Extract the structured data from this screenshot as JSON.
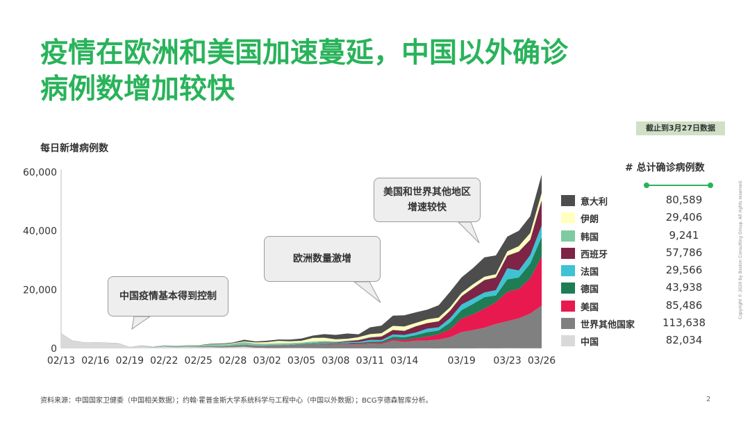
{
  "title_lines": [
    "疫情在欧洲和美国加速蔓延，中国以外确诊",
    "病例数增加较快"
  ],
  "as_of": "截止到3月27日数据",
  "totals_header": "# 总计确诊病例数",
  "callouts": [
    "中国疫情基本得到控制",
    "欧洲数量激增",
    "美国和世界其他地区增速较快"
  ],
  "footer": {
    "source": "资料来源：中国国家卫健委（中国相关数据）；约翰·霍普金斯大学系统科学与工程中心（中国以外数据）；BCG亨德森智库分析。",
    "page": "2",
    "copyright": "Copyright © 2020 by Boston Consulting Group. All rights reserved."
  },
  "chart_data": {
    "type": "area",
    "stacked": true,
    "ylabel": "每日新增病例数",
    "ylim": [
      0,
      60000
    ],
    "yticks": [
      "0",
      "20,000",
      "40,000",
      "60,000"
    ],
    "x_tick_labels": [
      {
        "i": 0,
        "label": "02/13"
      },
      {
        "i": 3,
        "label": "02/16"
      },
      {
        "i": 6,
        "label": "02/19"
      },
      {
        "i": 9,
        "label": "02/22"
      },
      {
        "i": 12,
        "label": "02/25"
      },
      {
        "i": 15,
        "label": "02/28"
      },
      {
        "i": 18,
        "label": "03/02"
      },
      {
        "i": 21,
        "label": "03/05"
      },
      {
        "i": 24,
        "label": "03/08"
      },
      {
        "i": 27,
        "label": "03/11"
      },
      {
        "i": 30,
        "label": "03/14"
      },
      {
        "i": 35,
        "label": "03/19"
      },
      {
        "i": 39,
        "label": "03/23"
      },
      {
        "i": 42,
        "label": "03/26"
      }
    ],
    "x": [
      "02/13",
      "02/14",
      "02/15",
      "02/16",
      "02/17",
      "02/18",
      "02/19",
      "02/20",
      "02/21",
      "02/22",
      "02/23",
      "02/24",
      "02/25",
      "02/26",
      "02/27",
      "02/28",
      "02/29",
      "03/01",
      "03/02",
      "03/03",
      "03/04",
      "03/05",
      "03/06",
      "03/07",
      "03/08",
      "03/09",
      "03/10",
      "03/11",
      "03/12",
      "03/13",
      "03/14",
      "03/15",
      "03/16",
      "03/17",
      "03/18",
      "03/19",
      "03/20",
      "03/21",
      "03/22",
      "03/23",
      "03/24",
      "03/25",
      "03/26"
    ],
    "series": [
      {
        "name": "中国",
        "total": "82,034",
        "color": "#d9d9d9",
        "values": [
          5090,
          2641,
          2009,
          2048,
          1886,
          1749,
          394,
          889,
          397,
          648,
          409,
          508,
          406,
          433,
          327,
          427,
          573,
          202,
          125,
          119,
          139,
          143,
          99,
          44,
          40,
          19,
          24,
          15,
          8,
          11,
          20,
          16,
          21,
          13,
          34,
          39,
          41,
          46,
          39,
          78,
          47,
          67,
          55
        ]
      },
      {
        "name": "世界其他国家",
        "total": "113,638",
        "color": "#808080",
        "values": [
          40,
          60,
          50,
          40,
          50,
          60,
          60,
          80,
          100,
          150,
          220,
          170,
          240,
          360,
          440,
          560,
          700,
          750,
          860,
          950,
          1050,
          1150,
          1200,
          1400,
          1350,
          1450,
          1300,
          1600,
          1500,
          2700,
          2200,
          2600,
          2700,
          3000,
          3800,
          5500,
          6200,
          7000,
          8300,
          9200,
          10200,
          11800,
          14500
        ]
      },
      {
        "name": "美国",
        "total": "85,486",
        "color": "#e8194f",
        "values": [
          0,
          0,
          0,
          0,
          0,
          0,
          0,
          0,
          0,
          0,
          0,
          0,
          0,
          1,
          1,
          3,
          5,
          10,
          20,
          25,
          30,
          70,
          90,
          120,
          110,
          200,
          290,
          270,
          350,
          500,
          650,
          800,
          1300,
          1800,
          2700,
          4600,
          5400,
          6500,
          7400,
          10000,
          10000,
          12000,
          16800
        ]
      },
      {
        "name": "德国",
        "total": "43,938",
        "color": "#1e7d55",
        "values": [
          0,
          0,
          0,
          0,
          0,
          0,
          0,
          0,
          0,
          0,
          0,
          0,
          3,
          5,
          10,
          20,
          20,
          50,
          30,
          40,
          40,
          130,
          170,
          150,
          200,
          200,
          300,
          400,
          500,
          750,
          900,
          1100,
          1500,
          1300,
          2300,
          2900,
          3500,
          3900,
          2300,
          4200,
          3900,
          5000,
          6600
        ]
      },
      {
        "name": "法国",
        "total": "29,566",
        "color": "#3fc2d4",
        "values": [
          0,
          0,
          0,
          0,
          0,
          0,
          0,
          0,
          0,
          0,
          0,
          0,
          1,
          1,
          20,
          20,
          40,
          30,
          60,
          20,
          70,
          90,
          200,
          200,
          100,
          280,
          300,
          600,
          500,
          800,
          800,
          900,
          1200,
          1100,
          1500,
          1900,
          1800,
          1600,
          1800,
          3800,
          2400,
          2900,
          3900
        ]
      },
      {
        "name": "西班牙",
        "total": "57,786",
        "color": "#7d2447",
        "values": [
          0,
          0,
          0,
          0,
          0,
          0,
          0,
          0,
          0,
          0,
          0,
          1,
          5,
          5,
          10,
          20,
          30,
          40,
          50,
          60,
          70,
          60,
          110,
          170,
          200,
          300,
          600,
          800,
          1200,
          1500,
          1400,
          2100,
          1900,
          2000,
          2500,
          2800,
          3600,
          4200,
          4300,
          4300,
          6400,
          5200,
          8600
        ]
      },
      {
        "name": "韩国",
        "total": "9,241",
        "color": "#7ecba1",
        "values": [
          0,
          0,
          0,
          0,
          0,
          0,
          20,
          50,
          100,
          230,
          170,
          230,
          280,
          500,
          500,
          570,
          810,
          580,
          480,
          520,
          440,
          370,
          480,
          480,
          360,
          240,
          130,
          240,
          110,
          110,
          110,
          75,
          74,
          80,
          90,
          150,
          90,
          150,
          100,
          70,
          80,
          100,
          100
        ]
      },
      {
        "name": "伊朗",
        "total": "29,406",
        "color": "#ffffc0",
        "values": [
          0,
          0,
          0,
          0,
          0,
          0,
          0,
          2,
          3,
          10,
          15,
          40,
          30,
          50,
          100,
          140,
          210,
          380,
          520,
          835,
          590,
          590,
          1230,
          1070,
          740,
          600,
          880,
          960,
          1000,
          1300,
          1400,
          1100,
          1200,
          1200,
          1100,
          1000,
          1200,
          1000,
          1000,
          1400,
          1800,
          2200,
          2400
        ]
      },
      {
        "name": "意大利",
        "total": "80,589",
        "color": "#4d4d4d",
        "values": [
          0,
          0,
          0,
          0,
          0,
          0,
          0,
          0,
          0,
          15,
          60,
          70,
          90,
          200,
          250,
          240,
          560,
          350,
          470,
          460,
          590,
          770,
          780,
          1250,
          1500,
          1800,
          1000,
          2300,
          2600,
          3500,
          3800,
          3600,
          3300,
          4200,
          5300,
          5300,
          5500,
          6600,
          6400,
          5000,
          5200,
          5700,
          6200
        ]
      }
    ]
  }
}
